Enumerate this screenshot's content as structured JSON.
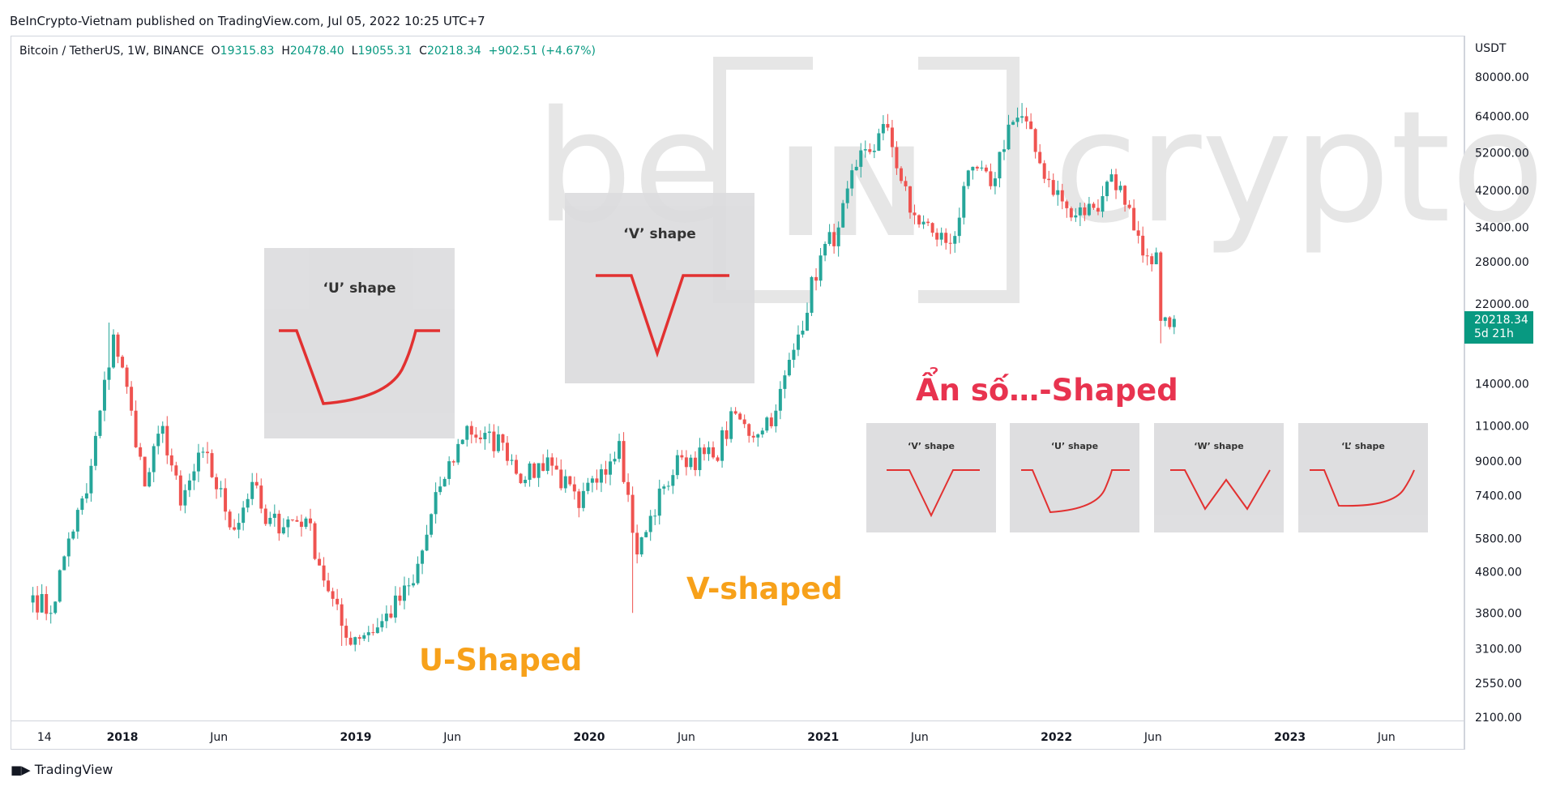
{
  "header": {
    "published": "BeInCrypto-Vietnam published on TradingView.com, Jul 05, 2022 10:25 UTC+7"
  },
  "legend": {
    "symbol": "Bitcoin / TetherUS, 1W, BINANCE",
    "o_label": "O",
    "o_value": "19315.83",
    "h_label": "H",
    "h_value": "20478.40",
    "l_label": "L",
    "l_value": "19055.31",
    "c_label": "C",
    "c_value": "20218.34",
    "change": "+902.51 (+4.67%)"
  },
  "price_axis": {
    "currency": "USDT",
    "last_price": "20218.34",
    "countdown": "5d 21h"
  },
  "watermark": {
    "text_left": "be",
    "text_mid": "IN",
    "text_right": "crypto"
  },
  "annotations": {
    "u_inset_title": "‘U’ shape",
    "v_inset_title": "‘V’ shape",
    "u_shaped": "U-Shaped",
    "v_shaped": "V-shaped",
    "unknown_shaped": "Ẩn số…-Shaped",
    "small_insets": [
      "‘V’ shape",
      "‘U’ shape",
      "‘W’ shape",
      "‘L’ shape"
    ]
  },
  "footer": {
    "brand": "TradingView"
  },
  "colors": {
    "up": "#26a69a",
    "down": "#ef5350",
    "orange": "#f7a11a",
    "red_label": "#e8334f",
    "shape_line": "#e02020"
  },
  "chart_data": {
    "type": "candlestick",
    "title": "",
    "scale": "log",
    "ylim": [
      2000,
      90000
    ],
    "y_ticks": [
      80000,
      64000,
      52000,
      42000,
      34000,
      28000,
      22000,
      14000,
      11000,
      9000,
      7400,
      5800,
      4800,
      3800,
      3100,
      2550,
      2100
    ],
    "y_tick_labels": [
      "80000.00",
      "64000.00",
      "52000.00",
      "42000.00",
      "34000.00",
      "28000.00",
      "22000.00",
      "14000.00",
      "11000.00",
      "9000.00",
      "7400.00",
      "5800.00",
      "4800.00",
      "3800.00",
      "3100.00",
      "2550.00",
      "2100.00"
    ],
    "x_tick_labels": [
      "14",
      "2018",
      "Jun",
      "2019",
      "Jun",
      "2020",
      "Jun",
      "2021",
      "Jun",
      "2022",
      "Jun",
      "2023",
      "Jun"
    ],
    "x_tick_dates": [
      "2017-09-01",
      "2018-01-01",
      "2018-06-01",
      "2019-01-01",
      "2019-06-01",
      "2020-01-01",
      "2020-06-01",
      "2021-01-01",
      "2021-06-01",
      "2022-01-01",
      "2022-06-01",
      "2023-01-01",
      "2023-06-01"
    ],
    "xlim": [
      "2017-07-10",
      "2023-10-01"
    ],
    "anchors": [
      {
        "date": "2017-08-14",
        "price": 4200
      },
      {
        "date": "2017-09-11",
        "price": 3800
      },
      {
        "date": "2017-10-09",
        "price": 5800
      },
      {
        "date": "2017-11-06",
        "price": 7500
      },
      {
        "date": "2017-12-18",
        "price": 18500
      },
      {
        "date": "2018-01-15",
        "price": 12000
      },
      {
        "date": "2018-02-05",
        "price": 7800
      },
      {
        "date": "2018-03-05",
        "price": 11000
      },
      {
        "date": "2018-04-02",
        "price": 7000
      },
      {
        "date": "2018-05-07",
        "price": 9500
      },
      {
        "date": "2018-06-25",
        "price": 6100
      },
      {
        "date": "2018-07-23",
        "price": 8000
      },
      {
        "date": "2018-08-13",
        "price": 6300
      },
      {
        "date": "2018-10-15",
        "price": 6500
      },
      {
        "date": "2018-11-19",
        "price": 4300
      },
      {
        "date": "2018-12-17",
        "price": 3300
      },
      {
        "date": "2019-02-04",
        "price": 3500
      },
      {
        "date": "2019-04-01",
        "price": 4500
      },
      {
        "date": "2019-05-13",
        "price": 7800
      },
      {
        "date": "2019-06-24",
        "price": 11000
      },
      {
        "date": "2019-07-15",
        "price": 10200
      },
      {
        "date": "2019-08-19",
        "price": 10000
      },
      {
        "date": "2019-09-23",
        "price": 8100
      },
      {
        "date": "2019-10-28",
        "price": 9200
      },
      {
        "date": "2019-12-16",
        "price": 6900
      },
      {
        "date": "2020-01-20",
        "price": 8600
      },
      {
        "date": "2020-02-17",
        "price": 10100
      },
      {
        "date": "2020-03-16",
        "price": 5300
      },
      {
        "date": "2020-04-27",
        "price": 7800
      },
      {
        "date": "2020-05-25",
        "price": 9200
      },
      {
        "date": "2020-07-13",
        "price": 9200
      },
      {
        "date": "2020-08-17",
        "price": 11800
      },
      {
        "date": "2020-09-07",
        "price": 10400
      },
      {
        "date": "2020-10-19",
        "price": 12000
      },
      {
        "date": "2020-11-23",
        "price": 18500
      },
      {
        "date": "2020-12-28",
        "price": 29000
      },
      {
        "date": "2021-01-25",
        "price": 34000
      },
      {
        "date": "2021-02-22",
        "price": 48000
      },
      {
        "date": "2021-04-12",
        "price": 60000
      },
      {
        "date": "2021-05-17",
        "price": 37000
      },
      {
        "date": "2021-06-21",
        "price": 33000
      },
      {
        "date": "2021-07-19",
        "price": 31000
      },
      {
        "date": "2021-08-23",
        "price": 48000
      },
      {
        "date": "2021-09-20",
        "price": 43000
      },
      {
        "date": "2021-10-18",
        "price": 61000
      },
      {
        "date": "2021-11-08",
        "price": 64000
      },
      {
        "date": "2021-12-06",
        "price": 49000
      },
      {
        "date": "2022-01-24",
        "price": 36000
      },
      {
        "date": "2022-02-28",
        "price": 38000
      },
      {
        "date": "2022-03-28",
        "price": 46000
      },
      {
        "date": "2022-04-25",
        "price": 38000
      },
      {
        "date": "2022-05-16",
        "price": 29000
      },
      {
        "date": "2022-06-06",
        "price": 29500
      },
      {
        "date": "2022-06-13",
        "price": 20000
      },
      {
        "date": "2022-06-27",
        "price": 19300
      },
      {
        "date": "2022-07-04",
        "price": 20218
      }
    ],
    "notable_extremes": [
      {
        "date": "2017-12-11",
        "high": 19800
      },
      {
        "date": "2018-12-10",
        "low": 3150
      },
      {
        "date": "2020-03-09",
        "low": 3800
      },
      {
        "date": "2021-11-08",
        "high": 69000
      },
      {
        "date": "2022-06-13",
        "low": 17600
      }
    ]
  }
}
